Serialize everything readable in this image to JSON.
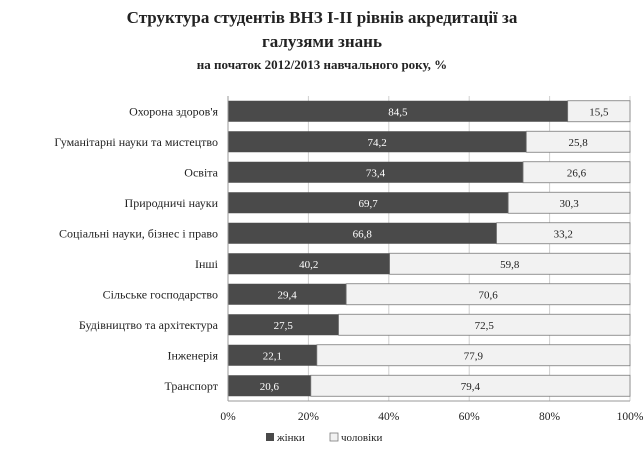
{
  "title": {
    "line1": "Структура студентів ВНЗ І-ІІ рівнів акредитації за",
    "line2": "галузями знань",
    "subtitle": "на початок 2012/2013 навчального року, %"
  },
  "colors": {
    "women": "#4a4a4a",
    "men": "#f2f2f2",
    "men_border": "#7a7a7a",
    "axis": "#9a9a9a",
    "grid": "#d0d0d0"
  },
  "chart_data": {
    "type": "bar",
    "orientation": "horizontal",
    "stacked": "percent",
    "categories": [
      "Охорона здоров'я",
      "Гуманітарні науки та мистецтво",
      "Освіта",
      "Природничі науки",
      "Соціальні науки, бізнес і право",
      "Інші",
      "Сільське господарство",
      "Будівництво та архітектура",
      "Інженерія",
      "Транспорт"
    ],
    "series": [
      {
        "name": "жінки",
        "values": [
          84.5,
          74.2,
          73.4,
          69.7,
          66.8,
          40.2,
          29.4,
          27.5,
          22.1,
          20.6
        ],
        "labels": [
          "84,5",
          "74,2",
          "73,4",
          "69,7",
          "66,8",
          "40,2",
          "29,4",
          "27,5",
          "22,1",
          "20,6"
        ]
      },
      {
        "name": "чоловіки",
        "values": [
          15.5,
          25.8,
          26.6,
          30.3,
          33.2,
          59.8,
          70.6,
          72.5,
          77.9,
          79.4
        ],
        "labels": [
          "15,5",
          "25,8",
          "26,6",
          "30,3",
          "33,2",
          "59,8",
          "70,6",
          "72,5",
          "77,9",
          "79,4"
        ]
      }
    ],
    "xlim": [
      0,
      100
    ],
    "xticks": [
      "0%",
      "20%",
      "40%",
      "60%",
      "80%",
      "100%"
    ],
    "legend_position": "bottom"
  }
}
